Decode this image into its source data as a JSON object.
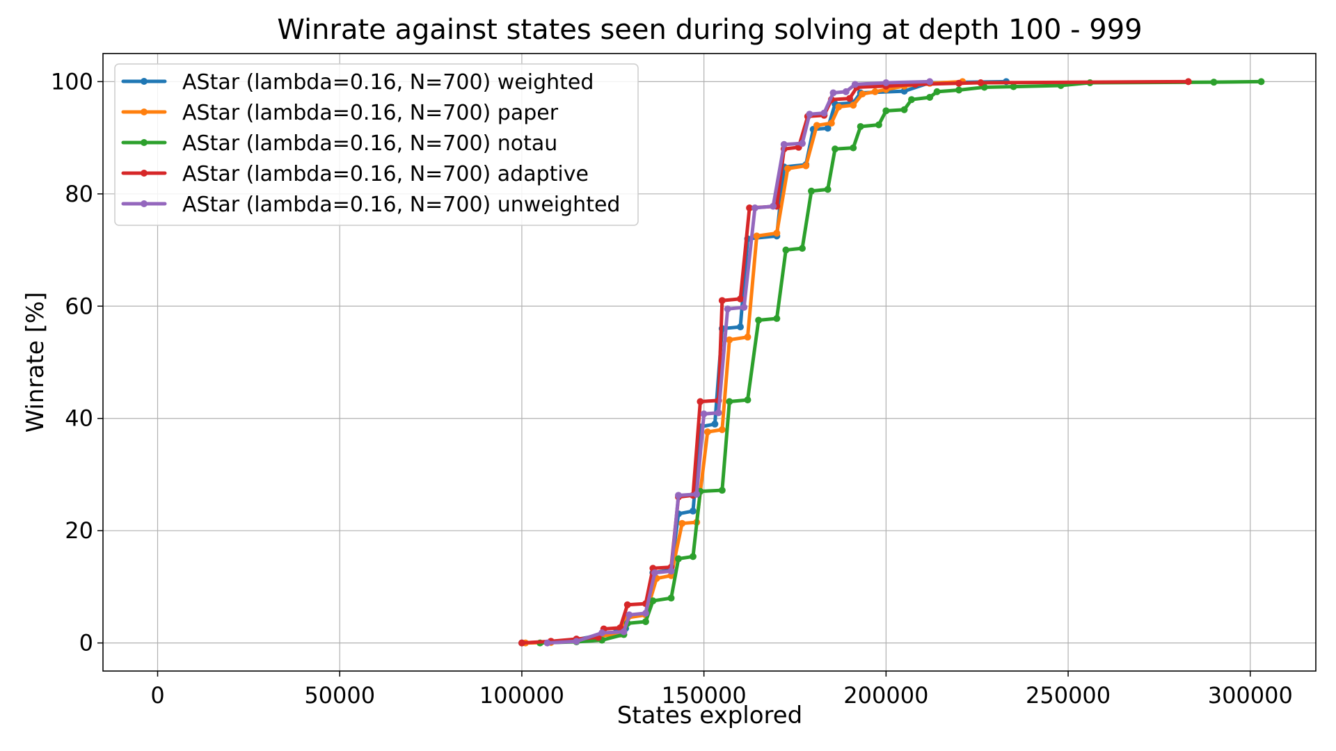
{
  "chart_data": {
    "type": "line",
    "title": "Winrate against states seen during solving at depth 100 - 999",
    "xlabel": "States explored",
    "ylabel": "Winrate [%]",
    "xlim": [
      -15000,
      318000
    ],
    "ylim": [
      -5,
      105
    ],
    "xticks": [
      0,
      50000,
      100000,
      150000,
      200000,
      250000,
      300000
    ],
    "xtick_labels": [
      "0",
      "50000",
      "100000",
      "150000",
      "200000",
      "250000",
      "300000"
    ],
    "yticks": [
      0,
      20,
      40,
      60,
      80,
      100
    ],
    "ytick_labels": [
      "0",
      "20",
      "40",
      "60",
      "80",
      "100"
    ],
    "grid": true,
    "legend_position": "top-left",
    "series": [
      {
        "name": "AStar (lambda=0.16, N=700) weighted",
        "color": "#1f77b4",
        "points": [
          [
            100000,
            0
          ],
          [
            108000,
            0.2
          ],
          [
            115000,
            0.6
          ],
          [
            122000,
            1.5
          ],
          [
            126000,
            2
          ],
          [
            128500,
            2.6
          ],
          [
            129500,
            4.8
          ],
          [
            134000,
            5.2
          ],
          [
            136000,
            12.5
          ],
          [
            141000,
            13
          ],
          [
            143000,
            23
          ],
          [
            147000,
            23.5
          ],
          [
            149000,
            38.5
          ],
          [
            153000,
            39
          ],
          [
            155000,
            56
          ],
          [
            160000,
            56.3
          ],
          [
            162000,
            72
          ],
          [
            170000,
            72.5
          ],
          [
            172000,
            84.8
          ],
          [
            178000,
            85.2
          ],
          [
            180000,
            91.5
          ],
          [
            184000,
            91.7
          ],
          [
            186000,
            96
          ],
          [
            191000,
            96.2
          ],
          [
            193000,
            98
          ],
          [
            205000,
            98.3
          ],
          [
            212000,
            99.8
          ],
          [
            233000,
            100
          ]
        ]
      },
      {
        "name": "AStar (lambda=0.16, N=700) paper",
        "color": "#ff7f0e",
        "points": [
          [
            101000,
            0
          ],
          [
            108000,
            0.1
          ],
          [
            115000,
            0.5
          ],
          [
            122000,
            1.3
          ],
          [
            127000,
            1.6
          ],
          [
            129000,
            4.5
          ],
          [
            134000,
            5
          ],
          [
            137000,
            11.5
          ],
          [
            141000,
            12
          ],
          [
            144000,
            21.3
          ],
          [
            148000,
            21.5
          ],
          [
            151000,
            37.6
          ],
          [
            155000,
            38
          ],
          [
            157000,
            54
          ],
          [
            162000,
            54.5
          ],
          [
            164500,
            72.5
          ],
          [
            170000,
            73
          ],
          [
            173000,
            84.5
          ],
          [
            178000,
            85
          ],
          [
            181000,
            92.2
          ],
          [
            185000,
            92.6
          ],
          [
            187000,
            95.5
          ],
          [
            191000,
            95.8
          ],
          [
            193500,
            97.8
          ],
          [
            197000,
            98.2
          ],
          [
            200000,
            98.6
          ],
          [
            205000,
            99.2
          ],
          [
            212000,
            99.7
          ],
          [
            221000,
            100
          ]
        ]
      },
      {
        "name": "AStar (lambda=0.16, N=700) notau",
        "color": "#2ca02c",
        "points": [
          [
            105000,
            0
          ],
          [
            115000,
            0.2
          ],
          [
            122000,
            0.5
          ],
          [
            128000,
            1.5
          ],
          [
            129000,
            3.5
          ],
          [
            134000,
            3.8
          ],
          [
            136000,
            7.5
          ],
          [
            141000,
            8
          ],
          [
            143000,
            15
          ],
          [
            147000,
            15.4
          ],
          [
            149000,
            27
          ],
          [
            155000,
            27.2
          ],
          [
            157000,
            43
          ],
          [
            162000,
            43.3
          ],
          [
            165000,
            57.5
          ],
          [
            170000,
            57.8
          ],
          [
            172500,
            70
          ],
          [
            177000,
            70.3
          ],
          [
            179500,
            80.5
          ],
          [
            184000,
            80.8
          ],
          [
            186000,
            88
          ],
          [
            191000,
            88.2
          ],
          [
            193000,
            92
          ],
          [
            198000,
            92.3
          ],
          [
            200000,
            94.8
          ],
          [
            205000,
            95
          ],
          [
            207000,
            96.8
          ],
          [
            212000,
            97.2
          ],
          [
            214000,
            98.2
          ],
          [
            220000,
            98.5
          ],
          [
            227000,
            99
          ],
          [
            235000,
            99.1
          ],
          [
            248000,
            99.3
          ],
          [
            256000,
            99.8
          ],
          [
            290000,
            99.9
          ],
          [
            303000,
            100
          ]
        ]
      },
      {
        "name": "AStar (lambda=0.16, N=700) adaptive",
        "color": "#d62728",
        "points": [
          [
            100000,
            0
          ],
          [
            108000,
            0.3
          ],
          [
            115000,
            0.7
          ],
          [
            121000,
            1
          ],
          [
            122500,
            2.5
          ],
          [
            127000,
            2.7
          ],
          [
            129000,
            6.8
          ],
          [
            134000,
            7
          ],
          [
            136000,
            13.3
          ],
          [
            141000,
            13.5
          ],
          [
            143000,
            26
          ],
          [
            147000,
            26.3
          ],
          [
            149000,
            43
          ],
          [
            154000,
            43.2
          ],
          [
            155000,
            61
          ],
          [
            160000,
            61.3
          ],
          [
            162500,
            77.5
          ],
          [
            170000,
            77.8
          ],
          [
            172000,
            88
          ],
          [
            176000,
            88.3
          ],
          [
            178500,
            93.8
          ],
          [
            183000,
            94
          ],
          [
            185000,
            96.8
          ],
          [
            190000,
            97
          ],
          [
            192000,
            99
          ],
          [
            200000,
            99.2
          ],
          [
            208000,
            99.5
          ],
          [
            220000,
            99.7
          ],
          [
            226000,
            99.8
          ],
          [
            283000,
            100
          ]
        ]
      },
      {
        "name": "AStar (lambda=0.16, N=700) unweighted",
        "color": "#9467bd",
        "points": [
          [
            107000,
            0
          ],
          [
            115000,
            0.3
          ],
          [
            122000,
            1.8
          ],
          [
            128000,
            2
          ],
          [
            129500,
            5
          ],
          [
            134000,
            5.3
          ],
          [
            136500,
            12.5
          ],
          [
            141000,
            12.8
          ],
          [
            143000,
            26.3
          ],
          [
            148000,
            26.5
          ],
          [
            150000,
            40.8
          ],
          [
            154000,
            41
          ],
          [
            156500,
            59.5
          ],
          [
            161000,
            59.8
          ],
          [
            164000,
            77.5
          ],
          [
            169000,
            77.8
          ],
          [
            172000,
            88.8
          ],
          [
            177000,
            89
          ],
          [
            179000,
            94.2
          ],
          [
            183000,
            94.4
          ],
          [
            185500,
            98
          ],
          [
            189000,
            98.2
          ],
          [
            191500,
            99.5
          ],
          [
            200000,
            99.8
          ],
          [
            212000,
            100
          ]
        ]
      }
    ]
  }
}
